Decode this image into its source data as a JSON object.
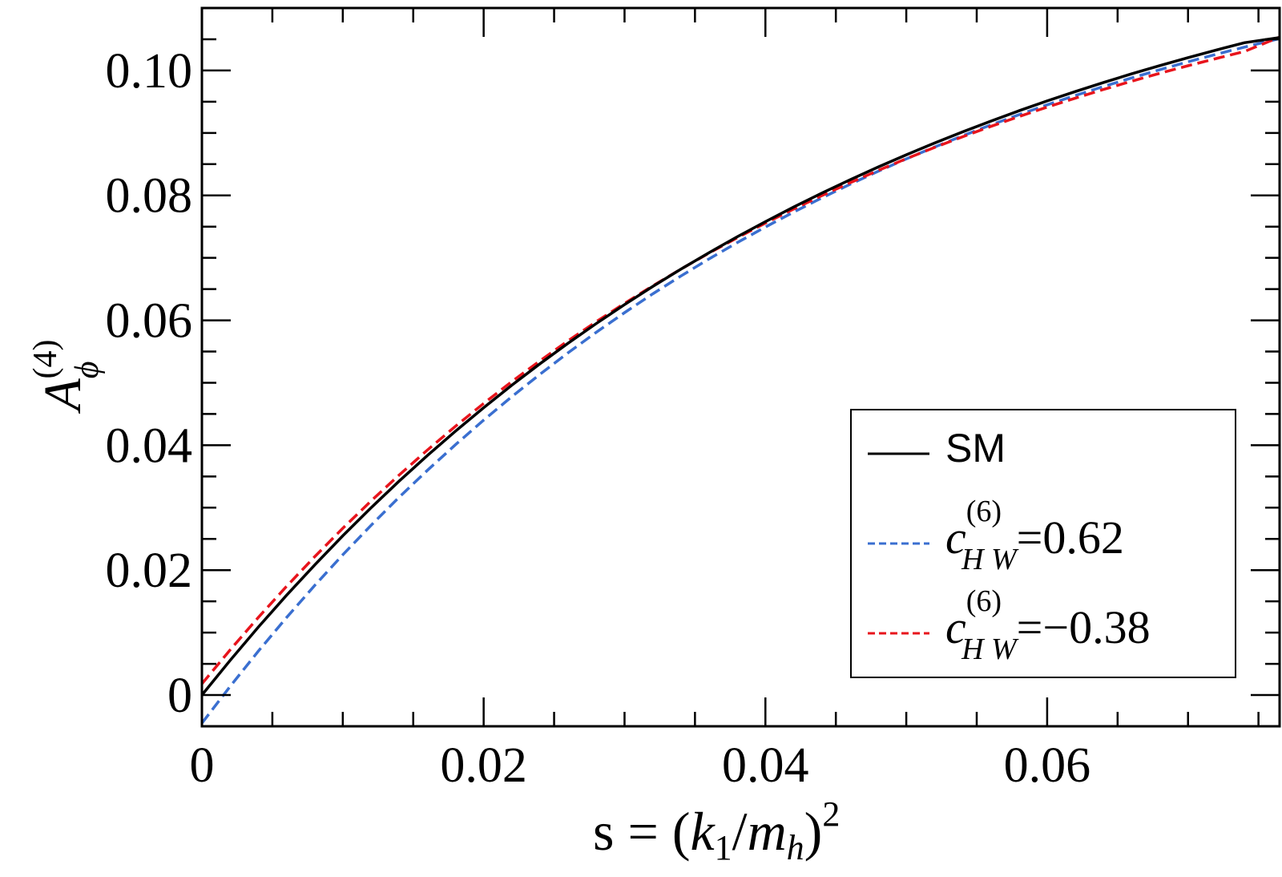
{
  "chart_data": {
    "type": "line",
    "title": "",
    "xlabel": {
      "prefix": "s = (",
      "k": "k",
      "k_sub": "1",
      "slash": "/",
      "m": "m",
      "m_sub": "h",
      "close": ")",
      "power": "2"
    },
    "ylabel": {
      "symbol": "A",
      "subscript": "ϕ",
      "superscript": "(4)"
    },
    "xlim": [
      0,
      0.0765
    ],
    "ylim": [
      -0.005,
      0.11
    ],
    "x_ticks": [
      0,
      0.02,
      0.04,
      0.06
    ],
    "x_tick_labels": [
      "0",
      "0.02",
      "0.04",
      "0.06"
    ],
    "y_ticks": [
      0,
      0.02,
      0.04,
      0.06,
      0.08,
      0.1
    ],
    "y_tick_labels": [
      "0",
      "0.02",
      "0.04",
      "0.06",
      "0.08",
      "0.10"
    ],
    "legend_position": "lower-right",
    "colors": {
      "sm": "#000000",
      "c_pos": "#3a6fd0",
      "c_neg": "#e8141c"
    },
    "series": [
      {
        "name": "SM",
        "style": "solid",
        "x": [
          0,
          0.002,
          0.004,
          0.006,
          0.008,
          0.01,
          0.012,
          0.014,
          0.016,
          0.018,
          0.02,
          0.022,
          0.024,
          0.026,
          0.028,
          0.03,
          0.032,
          0.034,
          0.036,
          0.038,
          0.04,
          0.042,
          0.044,
          0.046,
          0.048,
          0.05,
          0.052,
          0.054,
          0.056,
          0.058,
          0.06,
          0.062,
          0.064,
          0.066,
          0.068,
          0.07,
          0.072,
          0.074,
          0.0765
        ],
        "y": [
          0,
          0.00555,
          0.01087,
          0.01596,
          0.02083,
          0.0255,
          0.02997,
          0.03425,
          0.03834,
          0.04226,
          0.04601,
          0.04961,
          0.05305,
          0.05634,
          0.0595,
          0.06252,
          0.06541,
          0.06818,
          0.07083,
          0.07337,
          0.0758,
          0.07813,
          0.08036,
          0.08249,
          0.08454,
          0.0865,
          0.08837,
          0.09017,
          0.09189,
          0.09354,
          0.09512,
          0.09663,
          0.09808,
          0.09946,
          0.10079,
          0.10206,
          0.10328,
          0.10444,
          0.10528
        ]
      },
      {
        "name": "c_HW^(6)=0.62",
        "label_prefix": "c",
        "label_sub": "H W",
        "label_sup": "(6)",
        "label_value": "=0.62",
        "style": "dashed",
        "x": [
          0,
          0.002,
          0.004,
          0.006,
          0.008,
          0.01,
          0.012,
          0.014,
          0.016,
          0.018,
          0.02,
          0.022,
          0.024,
          0.026,
          0.028,
          0.03,
          0.032,
          0.034,
          0.036,
          0.038,
          0.04,
          0.042,
          0.044,
          0.046,
          0.048,
          0.05,
          0.052,
          0.054,
          0.056,
          0.058,
          0.06,
          0.062,
          0.064,
          0.066,
          0.068,
          0.07,
          0.072,
          0.074,
          0.0765
        ],
        "y": [
          -0.0045,
          0.00138,
          0.00701,
          0.01239,
          0.01754,
          0.02246,
          0.02717,
          0.03167,
          0.03597,
          0.04009,
          0.04402,
          0.04778,
          0.05137,
          0.05481,
          0.05809,
          0.06123,
          0.06423,
          0.06709,
          0.06983,
          0.07244,
          0.07494,
          0.07732,
          0.0796,
          0.08178,
          0.08386,
          0.08584,
          0.08773,
          0.08954,
          0.09127,
          0.09292,
          0.09449,
          0.096,
          0.09744,
          0.09881,
          0.10013,
          0.10139,
          0.10259,
          0.10374,
          0.10511
        ]
      },
      {
        "name": "c_HW^(6)=−0.38",
        "label_prefix": "c",
        "label_sub": "H W",
        "label_sup": "(6)",
        "label_value": "=−0.38",
        "style": "dashed",
        "x": [
          0,
          0.002,
          0.004,
          0.006,
          0.008,
          0.01,
          0.012,
          0.014,
          0.016,
          0.018,
          0.02,
          0.022,
          0.024,
          0.026,
          0.028,
          0.03,
          0.032,
          0.034,
          0.036,
          0.038,
          0.04,
          0.042,
          0.044,
          0.046,
          0.048,
          0.05,
          0.052,
          0.054,
          0.056,
          0.058,
          0.06,
          0.062,
          0.064,
          0.066,
          0.068,
          0.07,
          0.072,
          0.074,
          0.0765
        ],
        "y": [
          0.0018,
          0.00723,
          0.01242,
          0.01739,
          0.02215,
          0.0267,
          0.03106,
          0.03523,
          0.03922,
          0.04304,
          0.04669,
          0.05019,
          0.05353,
          0.05673,
          0.05979,
          0.06272,
          0.06552,
          0.0682,
          0.07077,
          0.07322,
          0.07557,
          0.07781,
          0.07996,
          0.08202,
          0.08399,
          0.08587,
          0.08767,
          0.08939,
          0.09104,
          0.09262,
          0.09413,
          0.09558,
          0.09696,
          0.09828,
          0.09955,
          0.10076,
          0.10192,
          0.10303,
          0.10534
        ]
      }
    ]
  }
}
